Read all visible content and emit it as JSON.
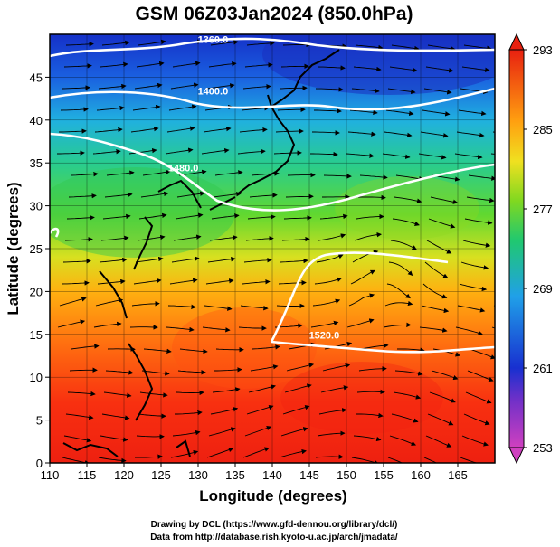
{
  "title": "GSM 06Z03Jan2024 (850.0hPa)",
  "x_axis": {
    "label": "Longitude (degrees)",
    "ticks": [
      "110",
      "115",
      "120",
      "125",
      "130",
      "135",
      "140",
      "145",
      "150",
      "155",
      "160",
      "165"
    ],
    "range": [
      110,
      170
    ]
  },
  "y_axis": {
    "label": "Latitude  (degrees)",
    "ticks": [
      "0",
      "5",
      "10",
      "15",
      "20",
      "25",
      "30",
      "35",
      "40",
      "45"
    ],
    "range": [
      0,
      50
    ]
  },
  "colorbar": {
    "ticks": [
      "253",
      "261",
      "269",
      "277",
      "285",
      "293"
    ],
    "range": [
      253,
      293
    ],
    "colors": [
      "#cc33cc",
      "#2020d0",
      "#22a0e8",
      "#22c860",
      "#f0e020",
      "#ff7000",
      "#e82010"
    ]
  },
  "contours": [
    {
      "label": "1360.0",
      "lat": 49,
      "lon": 132
    },
    {
      "label": "1400.0",
      "lat": 43,
      "lon": 132
    },
    {
      "label": "1480.0",
      "lat": 34,
      "lon": 128
    },
    {
      "label": "1520.0",
      "lat": 14.5,
      "lon": 147
    }
  ],
  "credits": {
    "line1": "Drawing by DCL (https://www.gfd-dennou.org/library/dcl/)",
    "line2": "Data from http://database.rish.kyoto-u.ac.jp/arch/jmadata/"
  }
}
